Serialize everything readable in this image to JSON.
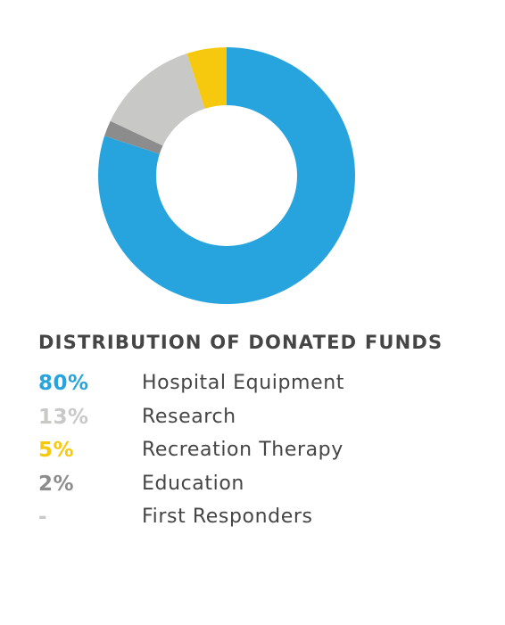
{
  "chart_data": {
    "type": "pie",
    "title": "DISTRIBUTION OF DONATED FUNDS",
    "series": [
      {
        "name": "Hospital Equipment",
        "value": 80,
        "value_label": "80%",
        "color": "#27a4de"
      },
      {
        "name": "Research",
        "value": 13,
        "value_label": "13%",
        "color": "#c8c8c6"
      },
      {
        "name": "Recreation Therapy",
        "value": 5,
        "value_label": "5%",
        "color": "#f6c90e"
      },
      {
        "name": "Education",
        "value": 2,
        "value_label": "2%",
        "color": "#8c8c8c"
      },
      {
        "name": "First Responders",
        "value": 0,
        "value_label": "-",
        "color": "#c8c8c6"
      }
    ],
    "slice_order": [
      "Hospital Equipment",
      "Education",
      "Research",
      "Recreation Therapy"
    ],
    "legend_position": "bottom"
  }
}
